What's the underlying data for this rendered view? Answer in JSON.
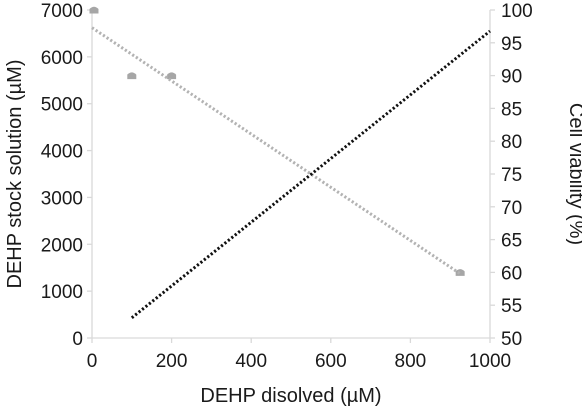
{
  "chart_data": {
    "type": "scatter",
    "title": "",
    "xlabel": "DEHP disolved (µM)",
    "ylabel": "DEHP stock solution (µM)",
    "y2label": "Cell viability (%)",
    "xlim": [
      0,
      1000
    ],
    "ylim": [
      0,
      7000
    ],
    "y2lim": [
      50,
      100
    ],
    "x_ticks": [
      "0",
      "200",
      "400",
      "600",
      "800",
      "1000"
    ],
    "y_ticks": [
      "0",
      "1000",
      "2000",
      "3000",
      "4000",
      "5000",
      "6000",
      "7000"
    ],
    "y2_ticks": [
      "50",
      "55",
      "60",
      "65",
      "70",
      "75",
      "80",
      "85",
      "90",
      "95",
      "100"
    ],
    "grid": false,
    "legend": "none",
    "series": [
      {
        "axis": "right",
        "style": "points",
        "color": "#a6a6a6",
        "x": [
          5,
          100,
          200,
          925
        ],
        "y": [
          100,
          90,
          90,
          60
        ]
      },
      {
        "axis": "right",
        "style": "dotted-trendline",
        "color": "#b3b3b3",
        "x": [
          0,
          925
        ],
        "y": [
          97.3,
          59.8
        ]
      },
      {
        "axis": "left",
        "style": "dotted-trendline",
        "color": "#111111",
        "x": [
          100,
          1000
        ],
        "y": [
          430,
          6550
        ]
      }
    ]
  },
  "colors": {
    "axis": "#d9d9d9",
    "text": "#1a1a1a"
  }
}
